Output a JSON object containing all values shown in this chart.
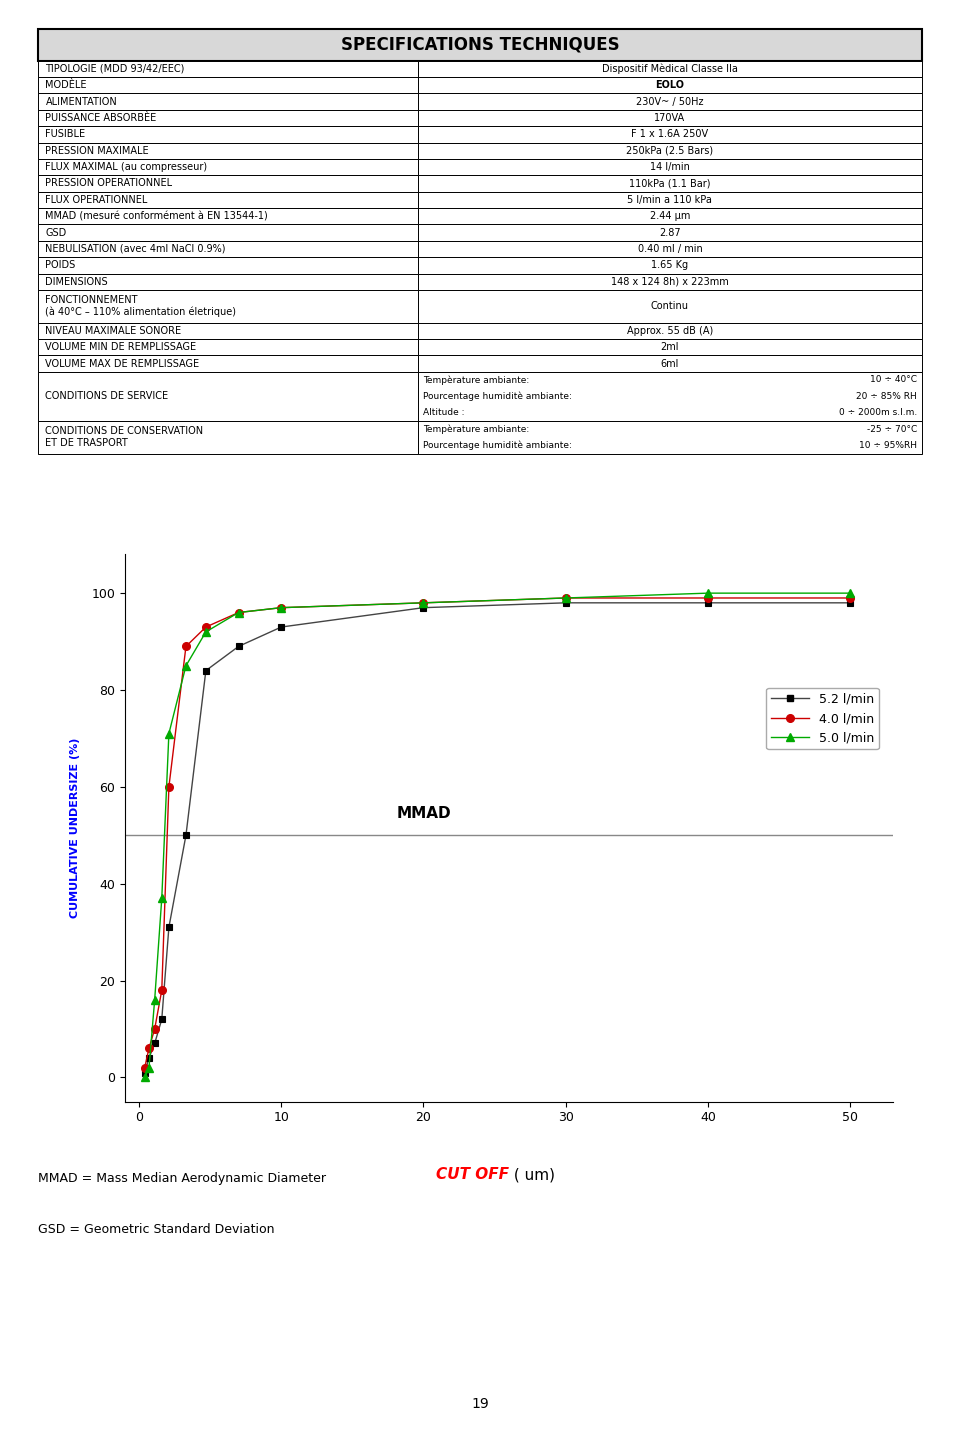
{
  "title": "SPECIFICATIONS TECHNIQUES",
  "table_rows": [
    [
      "TIPOLOGIE (MDD 93/42/EEC)",
      "Dispositif Mèdical Classe IIa",
      "center",
      false
    ],
    [
      "MODÈLE",
      "EOLO",
      "center",
      true
    ],
    [
      "ALIMENTATION",
      "230V~ / 50Hz",
      "center",
      false
    ],
    [
      "PUISSANCE ABSORBÈE",
      "170VA",
      "center",
      false
    ],
    [
      "FUSIBLE",
      "F 1 x 1.6A 250V",
      "center",
      false
    ],
    [
      "PRESSION MAXIMALE",
      "250kPa (2.5 Bars)",
      "center",
      false
    ],
    [
      "FLUX MAXIMAL (au compresseur)",
      "14 l/min",
      "center",
      false
    ],
    [
      "PRESSION OPERATIONNEL",
      "110kPa (1.1 Bar)",
      "center",
      false
    ],
    [
      "FLUX OPERATIONNEL",
      "5 l/min a 110 kPa",
      "center",
      false
    ],
    [
      "MMAD (mesuré conformément à EN 13544-1)",
      "2.44 μm",
      "center",
      false
    ],
    [
      "GSD",
      "2.87",
      "center",
      false
    ],
    [
      "NEBULISATION (avec 4ml NaCl 0.9%)",
      "0.40 ml / min",
      "center",
      false
    ],
    [
      "POIDS",
      "1.65 Kg",
      "center",
      false
    ],
    [
      "DIMENSIONS",
      "148 x 124 8h) x 223mm",
      "center",
      false
    ],
    [
      "FONCTIONNEMENT\n(à 40°C – 110% alimentation életrique)",
      "Continu",
      "center",
      false
    ],
    [
      "NIVEAU MAXIMALE SONORE",
      "Approx. 55 dB (A)",
      "center",
      false
    ],
    [
      "VOLUME MIN DE REMPLISSAGE",
      "2ml",
      "center",
      false
    ],
    [
      "VOLUME MAX DE REMPLISSAGE",
      "6ml",
      "center",
      false
    ],
    [
      "CONDITIONS DE SERVICE",
      "service",
      "left",
      false
    ],
    [
      "CONDITIONS DE CONSERVATION\nET DE TRASPORT",
      "conservation",
      "left",
      false
    ]
  ],
  "service_left": [
    "Tempèrature ambiante:",
    "Pourcentage humiditè ambiante:",
    "Altitude :"
  ],
  "service_right": [
    "10 ÷ 40°C",
    "20 ÷ 85% RH",
    "0 ÷ 2000m s.l.m."
  ],
  "conservation_left": [
    "Tempèrature ambiante:",
    "Pourcentage humiditè ambiante:"
  ],
  "conservation_right": [
    "-25 ÷ 70°C",
    "10 ÷ 95%RH"
  ],
  "series_52": {
    "x": [
      0.4,
      0.7,
      1.1,
      1.6,
      2.1,
      3.3,
      4.7,
      7.0,
      10.0,
      20.0,
      30.0,
      40.0,
      50.0
    ],
    "y": [
      1,
      4,
      7,
      12,
      31,
      50,
      84,
      89,
      93,
      97,
      98,
      98,
      98
    ],
    "color": "#444444",
    "marker": "s",
    "label": "5.2 l/min"
  },
  "series_40": {
    "x": [
      0.4,
      0.7,
      1.1,
      1.6,
      2.1,
      3.3,
      4.7,
      7.0,
      10.0,
      20.0,
      30.0,
      40.0,
      50.0
    ],
    "y": [
      2,
      6,
      10,
      18,
      60,
      89,
      93,
      96,
      97,
      98,
      99,
      99,
      99
    ],
    "color": "#cc0000",
    "marker": "o",
    "label": "4.0 l/min"
  },
  "series_50": {
    "x": [
      0.4,
      0.7,
      1.1,
      1.6,
      2.1,
      3.3,
      4.7,
      7.0,
      10.0,
      20.0,
      30.0,
      40.0,
      50.0
    ],
    "y": [
      0,
      2,
      16,
      37,
      71,
      85,
      92,
      96,
      97,
      98,
      99,
      100,
      100
    ],
    "color": "#00aa00",
    "marker": "^",
    "label": "5.0 l/min"
  },
  "xlabel_red": "CUT OFF",
  "xlabel_black": " ( um)",
  "ylabel": "CUMULATIVE UNDERSIZE (%)",
  "hline_y": 50,
  "mmad_label": "MMAD",
  "mmad_x": 20,
  "mmad_y": 53,
  "footnote1": "MMAD = Mass Median Aerodynamic Diameter",
  "footnote2": "GSD = Geometric Standard Deviation",
  "page_number": "19",
  "xlim": [
    -1,
    53
  ],
  "ylim": [
    -5,
    108
  ],
  "xticks": [
    0,
    10,
    20,
    30,
    40,
    50
  ],
  "yticks": [
    0,
    20,
    40,
    60,
    80,
    100
  ]
}
